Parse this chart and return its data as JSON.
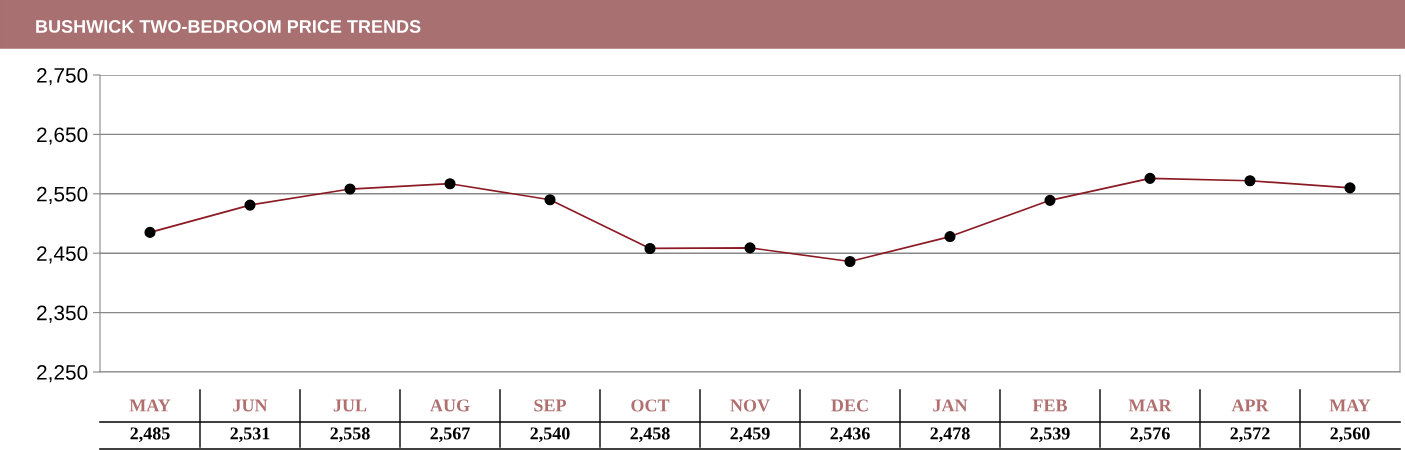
{
  "chart_data": {
    "type": "line",
    "title": "BUSHWICK TWO-BEDROOM PRICE TRENDS",
    "categories": [
      "MAY",
      "JUN",
      "JUL",
      "AUG",
      "SEP",
      "OCT",
      "NOV",
      "DEC",
      "JAN",
      "FEB",
      "MAR",
      "APR",
      "MAY"
    ],
    "series": [
      {
        "color": "#8b1a24",
        "values": [
          2485,
          2531,
          2558,
          2567,
          2540,
          2458,
          2459,
          2436,
          2478,
          2539,
          2576,
          2572,
          2560
        ]
      }
    ],
    "ylim": [
      2250,
      2750
    ],
    "yticks": [
      {
        "value": 2250,
        "label": "2,250"
      },
      {
        "value": 2350,
        "label": "2,350"
      },
      {
        "value": 2450,
        "label": "2,450"
      },
      {
        "value": 2550,
        "label": "2,550"
      },
      {
        "value": 2650,
        "label": "2,650"
      },
      {
        "value": 2750,
        "label": "2,750"
      }
    ],
    "value_labels": [
      "2,485",
      "2,531",
      "2,558",
      "2,567",
      "2,540",
      "2,458",
      "2,459",
      "2,436",
      "2,478",
      "2,539",
      "2,576",
      "2,572",
      "2,560"
    ],
    "grid": "y",
    "marker": "circle",
    "line_style": "solid"
  }
}
